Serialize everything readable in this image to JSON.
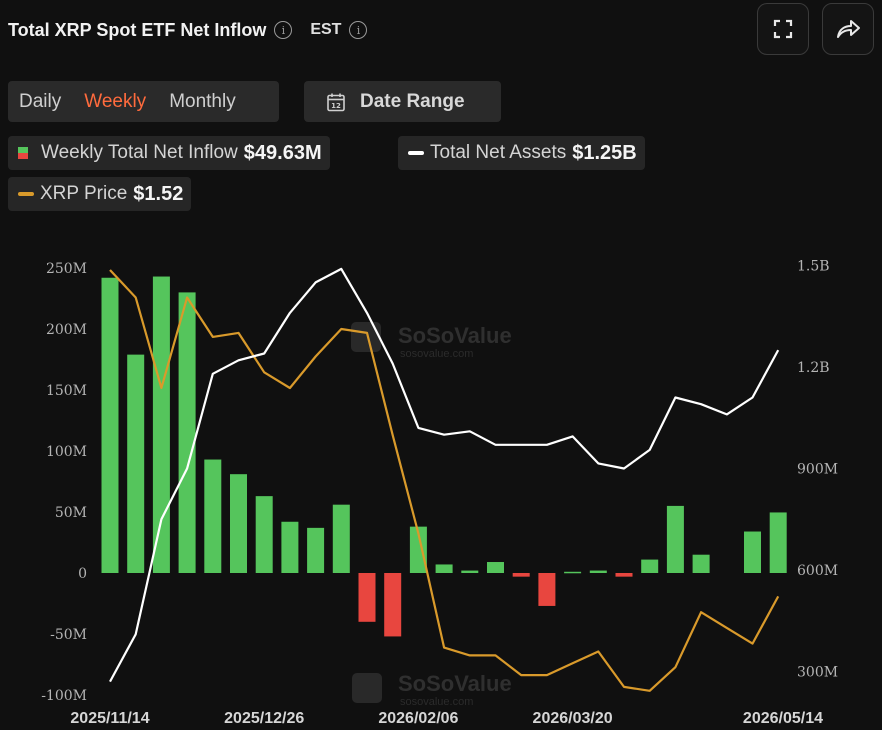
{
  "header": {
    "title": "Total XRP Spot ETF Net Inflow",
    "timezone": "EST"
  },
  "period_tabs": [
    {
      "label": "Daily",
      "active": false
    },
    {
      "label": "Weekly",
      "active": true
    },
    {
      "label": "Monthly",
      "active": false
    }
  ],
  "date_range_label": "Date Range",
  "legend": {
    "inflow_label": "Weekly Total Net Inflow",
    "inflow_value": "$49.63M",
    "assets_label": "Total Net Assets",
    "assets_value": "$1.25B",
    "price_label": "XRP Price",
    "price_value": "$1.52"
  },
  "colors": {
    "accent": "#ff6b3d",
    "positive_bar": "#55c55c",
    "negative_bar": "#e8463f",
    "assets_line": "#ffffff",
    "price_line": "#d99a2b",
    "background": "#101010"
  },
  "watermark": {
    "brand": "SoSoValue",
    "site": "sosovalue.com"
  },
  "chart_data": {
    "type": "bar",
    "title": "Total XRP Spot ETF Net Inflow",
    "y_left": {
      "ticks": [
        "250M",
        "200M",
        "150M",
        "100M",
        "50M",
        "0",
        "-50M",
        "-100M"
      ],
      "ylim": [
        -100,
        250
      ],
      "unit": "M"
    },
    "y_right": {
      "ticks": [
        "1.5B",
        "1.2B",
        "900M",
        "600M",
        "300M"
      ],
      "ylim": [
        270,
        1500
      ],
      "unit": "M"
    },
    "x_ticks": [
      "2025/11/14",
      "2025/12/26",
      "2026/02/06",
      "2026/03/20",
      "2026/05/14"
    ],
    "grid": false,
    "series": [
      {
        "name": "Weekly Total Net Inflow",
        "axis": "left",
        "values": [
          242,
          179,
          243,
          230,
          93,
          81,
          63,
          42,
          37,
          56,
          -40,
          -52,
          38,
          7,
          2,
          9,
          -3,
          -27,
          1,
          2,
          -3,
          11,
          55,
          15,
          null,
          34,
          49.63
        ]
      },
      {
        "name": "Total Net Assets",
        "axis": "right",
        "values": [
          270,
          410,
          750,
          900,
          1180,
          1220,
          1240,
          1360,
          1450,
          1490,
          1360,
          1210,
          1020,
          1000,
          1010,
          970,
          970,
          970,
          995,
          915,
          900,
          955,
          1110,
          1090,
          1060,
          1110,
          1250
        ]
      },
      {
        "name": "XRP Price",
        "axis": "right",
        "unit_note": "USD",
        "values": [
          2.35,
          2.28,
          2.05,
          2.28,
          2.18,
          2.19,
          2.09,
          2.05,
          2.13,
          2.2,
          2.19,
          1.93,
          1.68,
          1.39,
          1.37,
          1.37,
          1.32,
          1.32,
          1.35,
          1.38,
          1.29,
          1.28,
          1.34,
          1.48,
          1.44,
          1.4,
          1.52
        ]
      }
    ]
  }
}
